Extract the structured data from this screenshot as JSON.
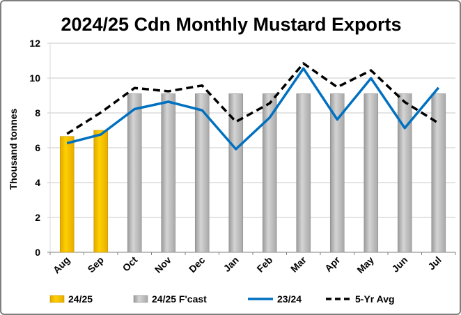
{
  "chart_data": {
    "type": "bar",
    "title": "2024/25 Cdn Monthly Mustard Exports",
    "xlabel": "",
    "ylabel": "Thousand tonnes",
    "ylim": [
      0,
      12
    ],
    "yticks": [
      0,
      2,
      4,
      6,
      8,
      10,
      12
    ],
    "grid": true,
    "legend_position": "bottom",
    "categories": [
      "Aug",
      "Sep",
      "Oct",
      "Nov",
      "Dec",
      "Jan",
      "Feb",
      "Mar",
      "Apr",
      "May",
      "Jun",
      "Jul"
    ],
    "series": [
      {
        "name": "24/25",
        "kind": "bar",
        "color": "#FFC000",
        "values": [
          6.65,
          7.0,
          null,
          null,
          null,
          null,
          null,
          null,
          null,
          null,
          null,
          null
        ]
      },
      {
        "name": "24/25 F'cast",
        "kind": "bar",
        "color": "#BFBFBF",
        "values": [
          null,
          null,
          9.1,
          9.1,
          9.1,
          9.1,
          9.1,
          9.1,
          9.1,
          9.1,
          9.1,
          9.1
        ]
      },
      {
        "name": "23/24",
        "kind": "line",
        "color": "#0070C0",
        "values": [
          6.26,
          6.76,
          8.22,
          8.64,
          8.15,
          5.92,
          7.73,
          10.55,
          7.62,
          9.99,
          7.13,
          9.45
        ]
      },
      {
        "name": "5-Yr Avg",
        "kind": "dashed-line",
        "color": "#000000",
        "values": [
          6.8,
          8.02,
          9.43,
          9.24,
          9.57,
          7.49,
          8.55,
          10.84,
          9.48,
          10.44,
          8.62,
          7.41
        ]
      }
    ]
  }
}
